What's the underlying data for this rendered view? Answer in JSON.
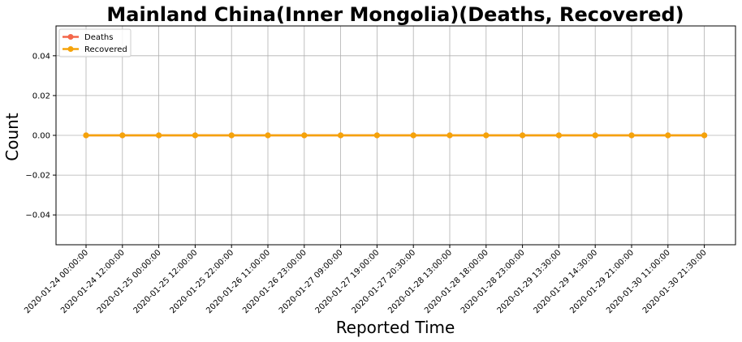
{
  "chart_data": {
    "type": "line",
    "title": "Mainland China(Inner Mongolia)(Deaths, Recovered)",
    "xlabel": "Reported Time",
    "ylabel": "Count",
    "ylim": [
      -0.055,
      0.055
    ],
    "yticks": [
      "0.04",
      "0.02",
      "0.00",
      "−0.02",
      "−0.04"
    ],
    "grid": true,
    "legend_position": "upper-left",
    "x": [
      "2020-01-24 00:00:00",
      "2020-01-24 12:00:00",
      "2020-01-25 00:00:00",
      "2020-01-25 12:00:00",
      "2020-01-25 22:00:00",
      "2020-01-26 11:00:00",
      "2020-01-26 23:00:00",
      "2020-01-27 09:00:00",
      "2020-01-27 19:00:00",
      "2020-01-27 20:30:00",
      "2020-01-28 13:00:00",
      "2020-01-28 18:00:00",
      "2020-01-28 23:00:00",
      "2020-01-29 13:30:00",
      "2020-01-29 14:30:00",
      "2020-01-29 21:00:00",
      "2020-01-30 11:00:00",
      "2020-01-30 21:30:00"
    ],
    "series": [
      {
        "name": "Deaths",
        "color": "#f4674a",
        "values": [
          0,
          0,
          0,
          0,
          0,
          0,
          0,
          0,
          0,
          0,
          0,
          0,
          0,
          0,
          0,
          0,
          0,
          0
        ]
      },
      {
        "name": "Recovered",
        "color": "#f5a30a",
        "values": [
          0,
          0,
          0,
          0,
          0,
          0,
          0,
          0,
          0,
          0,
          0,
          0,
          0,
          0,
          0,
          0,
          0,
          0
        ]
      }
    ]
  }
}
